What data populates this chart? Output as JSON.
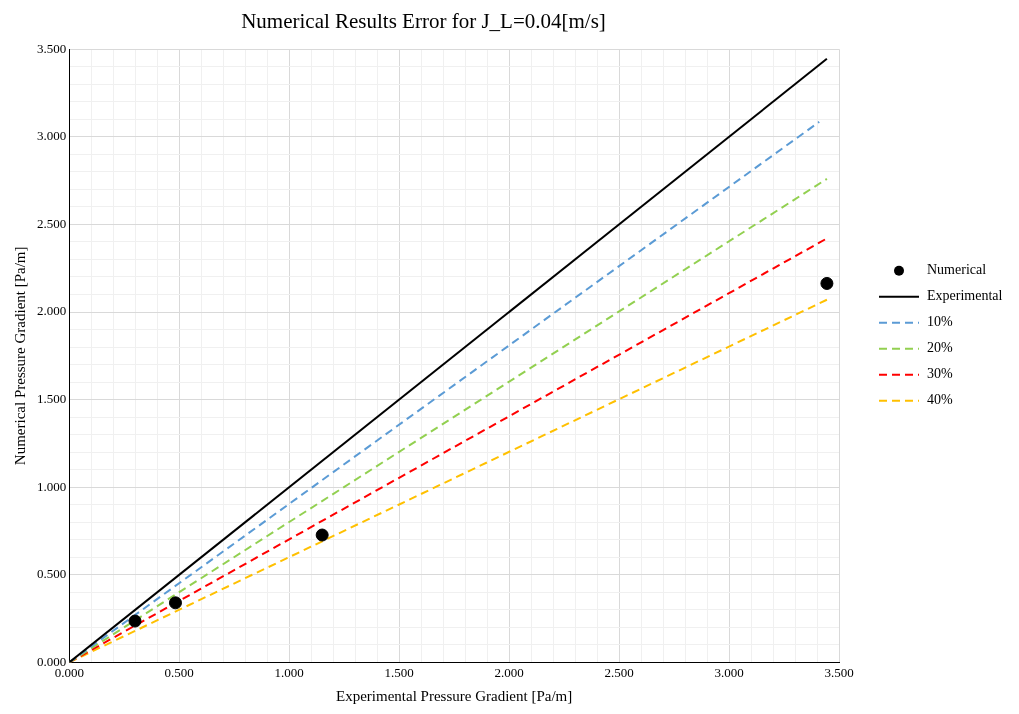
{
  "chart_data": {
    "type": "scatter",
    "title": "Numerical Results Error for J_L=0.04[m/s]",
    "xlabel": "Experimental Pressure Gradient [Pa/m]",
    "ylabel": "Numerical Pressure Gradient [Pa/m]",
    "series": [
      {
        "name": "Numerical",
        "type": "scatter",
        "marker": "circle",
        "color": "#000000",
        "x": [
          0.299,
          0.483,
          1.15,
          3.445
        ],
        "values": [
          0.236,
          0.34,
          0.727,
          2.163
        ]
      },
      {
        "name": "Experimental",
        "type": "line",
        "marker": "none",
        "line_style": "solid",
        "color": "#000000",
        "x": [
          0,
          3.445
        ],
        "values": [
          0,
          3.445
        ]
      },
      {
        "name": "10%",
        "type": "line",
        "marker": "none",
        "line_style": "dashed",
        "color": "#5b9bd5",
        "x": [
          0,
          3.41
        ],
        "values": [
          0,
          3.085
        ]
      },
      {
        "name": "20%",
        "type": "line",
        "marker": "none",
        "line_style": "dashed",
        "color": "#92d050",
        "x": [
          0,
          3.445
        ],
        "values": [
          0,
          2.76
        ]
      },
      {
        "name": "30%",
        "type": "line",
        "marker": "none",
        "line_style": "dashed",
        "color": "#ff0000",
        "x": [
          0,
          3.445
        ],
        "values": [
          0,
          2.42
        ]
      },
      {
        "name": "40%",
        "type": "line",
        "marker": "none",
        "line_style": "dashed",
        "color": "#ffc000",
        "x": [
          0,
          3.445
        ],
        "values": [
          0,
          2.07
        ]
      }
    ],
    "xlim": [
      0,
      3.5
    ],
    "ylim": [
      0,
      3.5
    ],
    "xticks": [
      {
        "value": 0,
        "label": "0.000"
      },
      {
        "value": 0.1,
        "label": null
      },
      {
        "value": 0.2,
        "label": null
      },
      {
        "value": 0.3,
        "label": null
      },
      {
        "value": 0.4,
        "label": null
      },
      {
        "value": 0.5,
        "label": "0.500"
      },
      {
        "value": 0.6,
        "label": null
      },
      {
        "value": 0.7,
        "label": null
      },
      {
        "value": 0.8,
        "label": null
      },
      {
        "value": 0.9,
        "label": null
      },
      {
        "value": 1,
        "label": "1.000"
      },
      {
        "value": 1.1,
        "label": null
      },
      {
        "value": 1.2,
        "label": null
      },
      {
        "value": 1.3,
        "label": null
      },
      {
        "value": 1.4,
        "label": null
      },
      {
        "value": 1.5,
        "label": "1.500"
      },
      {
        "value": 1.6,
        "label": null
      },
      {
        "value": 1.7,
        "label": null
      },
      {
        "value": 1.8,
        "label": null
      },
      {
        "value": 1.9,
        "label": null
      },
      {
        "value": 2,
        "label": "2.000"
      },
      {
        "value": 2.1,
        "label": null
      },
      {
        "value": 2.2,
        "label": null
      },
      {
        "value": 2.3,
        "label": null
      },
      {
        "value": 2.4,
        "label": null
      },
      {
        "value": 2.5,
        "label": "2.500"
      },
      {
        "value": 2.6,
        "label": null
      },
      {
        "value": 2.7,
        "label": null
      },
      {
        "value": 2.8,
        "label": null
      },
      {
        "value": 2.9,
        "label": null
      },
      {
        "value": 3,
        "label": "3.000"
      },
      {
        "value": 3.1,
        "label": null
      },
      {
        "value": 3.2,
        "label": null
      },
      {
        "value": 3.3,
        "label": null
      },
      {
        "value": 3.4,
        "label": null
      },
      {
        "value": 3.5,
        "label": "3.500"
      }
    ],
    "yticks": [
      {
        "value": 0,
        "label": "0.000"
      },
      {
        "value": 0.1,
        "label": null
      },
      {
        "value": 0.2,
        "label": null
      },
      {
        "value": 0.3,
        "label": null
      },
      {
        "value": 0.4,
        "label": null
      },
      {
        "value": 0.5,
        "label": "0.500"
      },
      {
        "value": 0.6,
        "label": null
      },
      {
        "value": 0.7,
        "label": null
      },
      {
        "value": 0.8,
        "label": null
      },
      {
        "value": 0.9,
        "label": null
      },
      {
        "value": 1,
        "label": "1.000"
      },
      {
        "value": 1.1,
        "label": null
      },
      {
        "value": 1.2,
        "label": null
      },
      {
        "value": 1.3,
        "label": null
      },
      {
        "value": 1.4,
        "label": null
      },
      {
        "value": 1.5,
        "label": "1.500"
      },
      {
        "value": 1.6,
        "label": null
      },
      {
        "value": 1.7,
        "label": null
      },
      {
        "value": 1.8,
        "label": null
      },
      {
        "value": 1.9,
        "label": null
      },
      {
        "value": 2,
        "label": "2.000"
      },
      {
        "value": 2.1,
        "label": null
      },
      {
        "value": 2.2,
        "label": null
      },
      {
        "value": 2.3,
        "label": null
      },
      {
        "value": 2.4,
        "label": null
      },
      {
        "value": 2.5,
        "label": "2.500"
      },
      {
        "value": 2.6,
        "label": null
      },
      {
        "value": 2.7,
        "label": null
      },
      {
        "value": 2.8,
        "label": null
      },
      {
        "value": 2.9,
        "label": null
      },
      {
        "value": 3,
        "label": "3.000"
      },
      {
        "value": 3.1,
        "label": null
      },
      {
        "value": 3.2,
        "label": null
      },
      {
        "value": 3.3,
        "label": null
      },
      {
        "value": 3.4,
        "label": null
      },
      {
        "value": 3.5,
        "label": "3.500"
      }
    ],
    "grid": true,
    "legend": "right"
  }
}
